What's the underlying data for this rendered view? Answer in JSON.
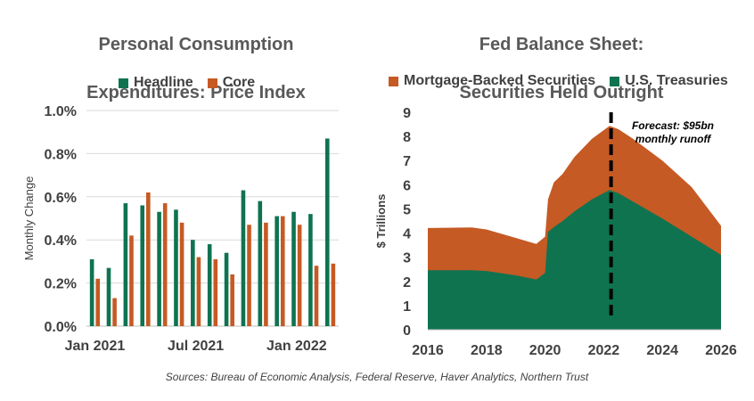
{
  "colors": {
    "green": "#0f7350",
    "orange": "#c55a24",
    "grid": "#d9d9d9",
    "axis": "#bfbfbf",
    "text": "#404040"
  },
  "source": "Sources: Bureau of Economic Analysis, Federal Reserve, Haver Analytics, Northern Trust",
  "chart_data": [
    {
      "type": "bar",
      "title": "Personal Consumption Expenditures: Price Index",
      "title_lines": [
        "Personal Consumption",
        "Expenditures: Price Index"
      ],
      "ylabel": "Monthly Change",
      "ylim": [
        0,
        1.0
      ],
      "yticks": [
        "0.0%",
        "0.2%",
        "0.4%",
        "0.6%",
        "0.8%",
        "1.0%"
      ],
      "x_tick_labels": [
        {
          "index": 0,
          "label": "Jan 2021"
        },
        {
          "index": 6,
          "label": "Jul 2021"
        },
        {
          "index": 12,
          "label": "Jan 2022"
        }
      ],
      "categories": [
        "Jan 2021",
        "Feb 2021",
        "Mar 2021",
        "Apr 2021",
        "May 2021",
        "Jun 2021",
        "Jul 2021",
        "Aug 2021",
        "Sep 2021",
        "Oct 2021",
        "Nov 2021",
        "Dec 2021",
        "Jan 2022",
        "Feb 2022",
        "Mar 2022"
      ],
      "series": [
        {
          "name": "Headline",
          "color": "#0f7350",
          "values": [
            0.31,
            0.27,
            0.57,
            0.56,
            0.53,
            0.54,
            0.4,
            0.38,
            0.34,
            0.63,
            0.58,
            0.51,
            0.53,
            0.52,
            0.87
          ]
        },
        {
          "name": "Core",
          "color": "#c55a24",
          "values": [
            0.22,
            0.13,
            0.42,
            0.62,
            0.57,
            0.48,
            0.32,
            0.31,
            0.24,
            0.47,
            0.48,
            0.51,
            0.47,
            0.28,
            0.29
          ]
        }
      ],
      "legend": "top"
    },
    {
      "type": "area",
      "title": "Fed Balance Sheet: Securities Held Outright",
      "title_lines": [
        "Fed Balance Sheet:",
        "Securities Held Outright"
      ],
      "ylabel": "$ Trillions",
      "xlim": [
        2016,
        2026
      ],
      "ylim": [
        0,
        9
      ],
      "xticks": [
        "2016",
        "2018",
        "2020",
        "2022",
        "2024",
        "2026"
      ],
      "yticks": [
        "0",
        "1",
        "2",
        "3",
        "4",
        "5",
        "6",
        "7",
        "8",
        "9"
      ],
      "x": [
        2016.0,
        2017.5,
        2018.0,
        2019.0,
        2019.7,
        2020.0,
        2020.1,
        2020.3,
        2020.6,
        2021.0,
        2021.6,
        2022.2,
        2022.5,
        2023.0,
        2024.0,
        2025.0,
        2026.0
      ],
      "series": [
        {
          "name": "U.S. Treasuries",
          "color": "#0f7350",
          "values": [
            2.46,
            2.46,
            2.43,
            2.25,
            2.08,
            2.35,
            4.05,
            4.25,
            4.5,
            4.9,
            5.4,
            5.78,
            5.65,
            5.3,
            4.6,
            3.85,
            3.1
          ]
        },
        {
          "name": "Mortgage-Backed Securities",
          "color": "#c55a24",
          "values": [
            1.75,
            1.77,
            1.72,
            1.55,
            1.47,
            1.5,
            1.35,
            1.85,
            1.95,
            2.25,
            2.5,
            2.66,
            2.65,
            2.6,
            2.4,
            2.05,
            1.2
          ]
        }
      ],
      "legend_order": [
        "Mortgage-Backed Securities",
        "U.S. Treasuries"
      ],
      "forecast_line_x": 2022.25,
      "annotation": "Forecast: $95bn\nmonthly runoff",
      "annotation_lines": [
        "Forecast: $95bn",
        "monthly runoff"
      ]
    }
  ]
}
